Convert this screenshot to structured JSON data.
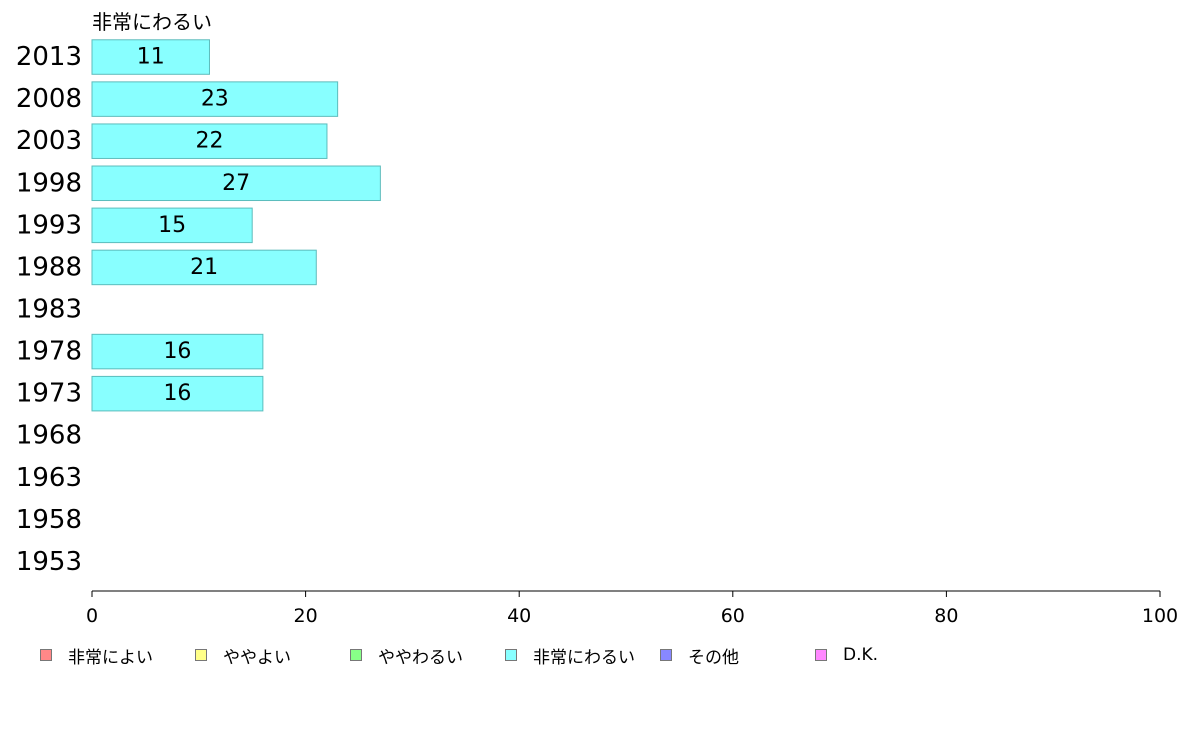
{
  "chart_data": {
    "type": "bar",
    "orientation": "horizontal",
    "title": "非常にわるい",
    "categories": [
      "2013",
      "2008",
      "2003",
      "1998",
      "1993",
      "1988",
      "1983",
      "1978",
      "1973",
      "1968",
      "1963",
      "1958",
      "1953"
    ],
    "values": [
      11,
      23,
      22,
      27,
      15,
      21,
      null,
      16,
      16,
      null,
      null,
      null,
      null
    ],
    "value_labels": [
      "11",
      "23",
      "22",
      "27",
      "15",
      "21",
      "",
      "16",
      "16",
      "",
      "",
      "",
      ""
    ],
    "xlim": [
      0,
      100
    ],
    "xticks": [
      0,
      20,
      40,
      60,
      80,
      100
    ],
    "xtick_labels": [
      "0",
      "20",
      "40",
      "60",
      "80",
      "100"
    ],
    "grid": false,
    "bar_color": "#88ffff",
    "bar_edge_color": "#5cbcbc",
    "legend": {
      "placement": "bottom",
      "items": [
        {
          "label": "非常によい",
          "color": "#ff8888"
        },
        {
          "label": "ややよい",
          "color": "#ffff88"
        },
        {
          "label": "ややわるい",
          "color": "#88ff88"
        },
        {
          "label": "非常にわるい",
          "color": "#88ffff"
        },
        {
          "label": "その他",
          "color": "#8888ff"
        },
        {
          "label": "D.K.",
          "color": "#ff88ff"
        }
      ]
    }
  }
}
